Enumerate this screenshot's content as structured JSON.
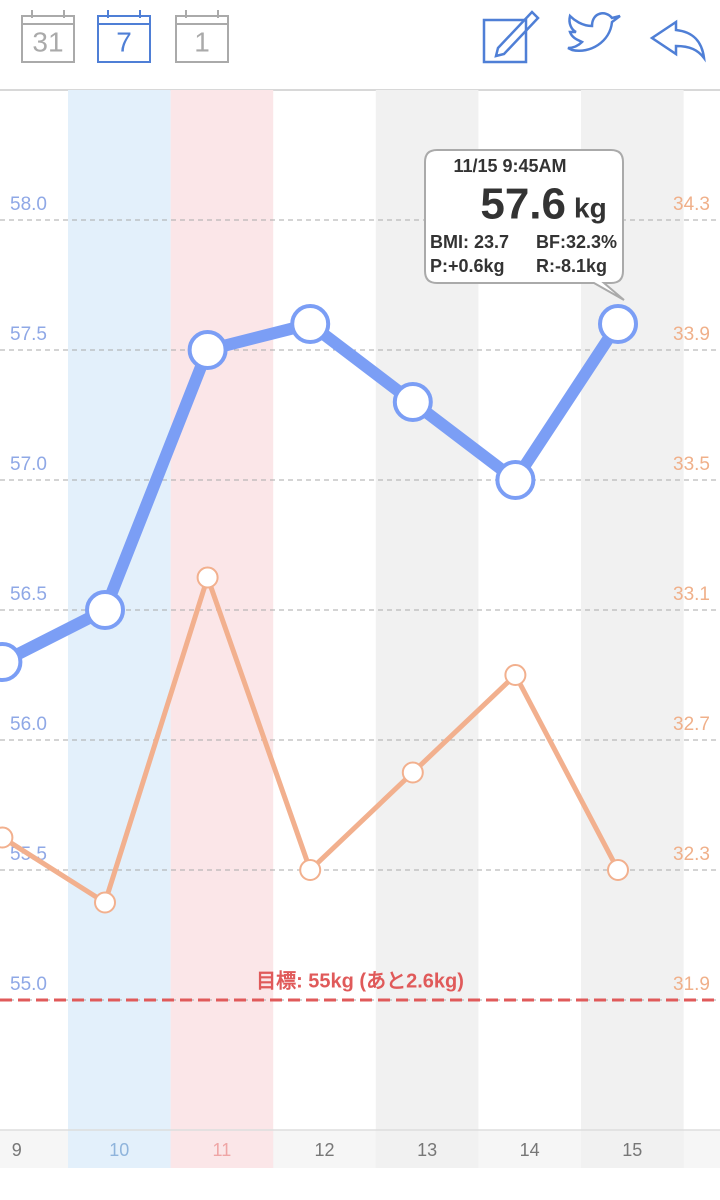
{
  "header": {
    "calendar_buttons": [
      "31",
      "7",
      "1"
    ]
  },
  "chart_data": {
    "type": "line",
    "categories": [
      "9",
      "10",
      "11",
      "12",
      "13",
      "14",
      "15"
    ],
    "band_colors": [
      null,
      "#e3f0fb",
      "#fbe6e8",
      null,
      "#f1f1f1",
      null,
      "#f1f1f1"
    ],
    "label_colors": [
      "#777",
      "#8fb4dc",
      "#efa5a5",
      "#777",
      "#777",
      "#777",
      "#777"
    ],
    "series": [
      {
        "color": "#7b9ef5",
        "values": [
          56.3,
          56.5,
          57.5,
          57.6,
          57.3,
          57.0,
          57.6
        ]
      },
      {
        "color": "#f2b08e",
        "axis": "y2",
        "values": [
          32.4,
          32.2,
          33.2,
          32.3,
          32.6,
          32.9,
          32.3
        ]
      }
    ],
    "ylim": [
      54.5,
      58.5
    ],
    "yticks": [
      {
        "value": 58,
        "label": "58.0"
      },
      57.5,
      {
        "value": 57,
        "label": "57.0"
      },
      56.5,
      {
        "value": 56,
        "label": "56.0"
      },
      55.5,
      {
        "value": 55,
        "label": "55.0"
      }
    ],
    "y2lim": [
      31.5,
      34.7
    ],
    "y2ticks": [
      34.3,
      33.9,
      33.5,
      33.1,
      32.7,
      32.3,
      31.9
    ],
    "grid": true,
    "goal": {
      "value": 55,
      "label": "目標: 55kg (あと2.6kg)",
      "color": "#e05a5a"
    },
    "tooltip": {
      "datetime": "11/15 9:45AM",
      "unit": "kg",
      "bmi": "BMI: 23.7",
      "bf": "BF:32.3%",
      "p": "P:+0.6kg",
      "r": "R:-8.1kg"
    }
  }
}
